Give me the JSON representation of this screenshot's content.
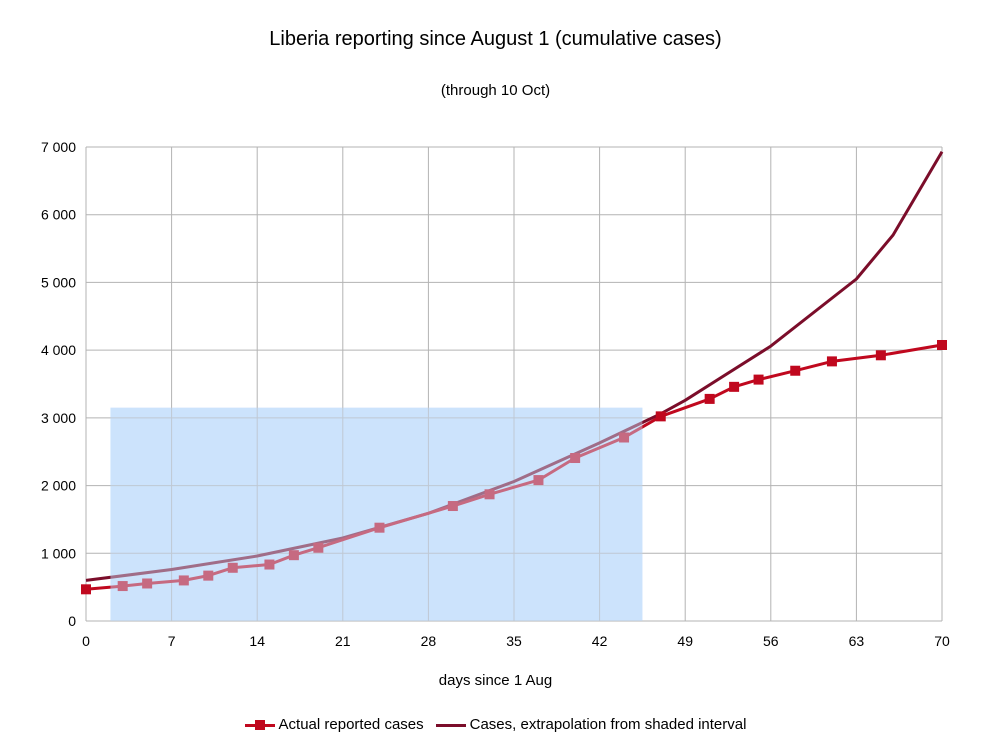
{
  "chart_data": {
    "type": "line",
    "title": "Liberia reporting since August 1 (cumulative cases)",
    "subtitle": "(through 10 Oct)",
    "xlabel": "days since 1 Aug",
    "ylabel": "",
    "xlim": [
      0,
      70
    ],
    "ylim": [
      0,
      7000
    ],
    "x_ticks": [
      0,
      7,
      14,
      21,
      28,
      35,
      42,
      49,
      56,
      63,
      70
    ],
    "y_ticks": [
      0,
      1000,
      2000,
      3000,
      4000,
      5000,
      6000,
      7000
    ],
    "y_tick_labels": [
      "0",
      "1 000",
      "2 000",
      "3 000",
      "4 000",
      "5 000",
      "6 000",
      "7 000"
    ],
    "grid": true,
    "shaded_interval": {
      "x": [
        2,
        45.5
      ],
      "y": [
        0,
        3150
      ]
    },
    "series": [
      {
        "name": "Actual reported cases",
        "color": "#c0081e",
        "marker": "square",
        "points": [
          [
            0,
            468
          ],
          [
            3,
            516
          ],
          [
            5,
            554
          ],
          [
            8,
            599
          ],
          [
            10,
            670
          ],
          [
            12,
            786
          ],
          [
            15,
            834
          ],
          [
            17,
            972
          ],
          [
            19,
            1082
          ],
          [
            24,
            1378
          ],
          [
            30,
            1698
          ],
          [
            33,
            1871
          ],
          [
            37,
            2081
          ],
          [
            40,
            2407
          ],
          [
            44,
            2710
          ],
          [
            47,
            3022
          ],
          [
            51,
            3280
          ],
          [
            53,
            3458
          ],
          [
            55,
            3565
          ],
          [
            58,
            3696
          ],
          [
            61,
            3834
          ],
          [
            65,
            3924
          ],
          [
            70,
            4076
          ]
        ]
      },
      {
        "name": "Cases, extrapolation from shaded interval",
        "color": "#7b0d2a",
        "marker": "none",
        "points": [
          [
            0,
            600
          ],
          [
            7,
            760
          ],
          [
            14,
            960
          ],
          [
            21,
            1225
          ],
          [
            28,
            1590
          ],
          [
            35,
            2060
          ],
          [
            42,
            2630
          ],
          [
            47,
            3060
          ],
          [
            49,
            3260
          ],
          [
            56,
            4060
          ],
          [
            63,
            5050
          ],
          [
            66,
            5700
          ],
          [
            70,
            6930
          ]
        ]
      }
    ]
  },
  "legend": {
    "actual_label": "Actual reported cases",
    "extrap_label": "Cases, extrapolation from shaded interval"
  }
}
